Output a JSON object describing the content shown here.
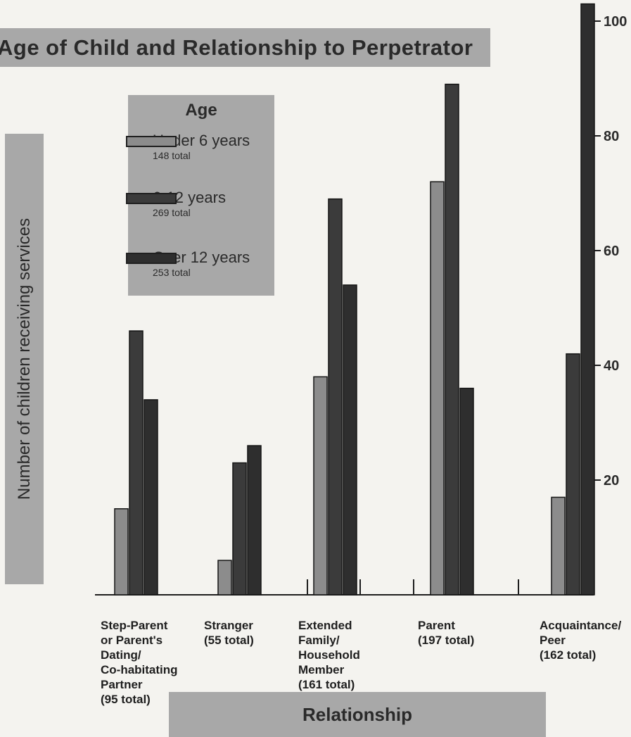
{
  "chart_data": {
    "type": "bar",
    "title": "Age of Child and Relationship to Perpetrator",
    "xlabel": "Relationship",
    "ylabel": "Number of children receiving services",
    "ylim": [
      0,
      103
    ],
    "yticks": [
      20,
      40,
      60,
      80,
      100
    ],
    "y_axis_side": "right",
    "legend_placement": "top-left",
    "legend_title": "Age",
    "grid": false,
    "categories": [
      {
        "label": "Step-Parent\nor Parent's\nDating/\nCo-habitating\nPartner",
        "total": "(95 total)"
      },
      {
        "label": "Stranger",
        "total": "(55 total)"
      },
      {
        "label": "Extended\nFamily/\nHousehold\nMember",
        "total": "(161 total)"
      },
      {
        "label": "Parent",
        "total": "(197 total)"
      },
      {
        "label": "Acquaintance/\nPeer",
        "total": "(162 total)"
      }
    ],
    "series": [
      {
        "name": "Under 6 years",
        "total_label": "148 total",
        "color": "#8c8c8c",
        "values": [
          15,
          6,
          38,
          72,
          17
        ]
      },
      {
        "name": "6-12 years",
        "total_label": "269 total",
        "color": "#3b3b3b",
        "values": [
          46,
          23,
          69,
          89,
          42
        ]
      },
      {
        "name": "Over 12 years",
        "total_label": "253 total",
        "color": "#2e2e2e",
        "values": [
          34,
          26,
          54,
          36,
          103
        ]
      }
    ]
  },
  "colors": {
    "background": "#f4f3ef",
    "panel": "#a8a8a8",
    "axis": "#1e1e1e"
  }
}
